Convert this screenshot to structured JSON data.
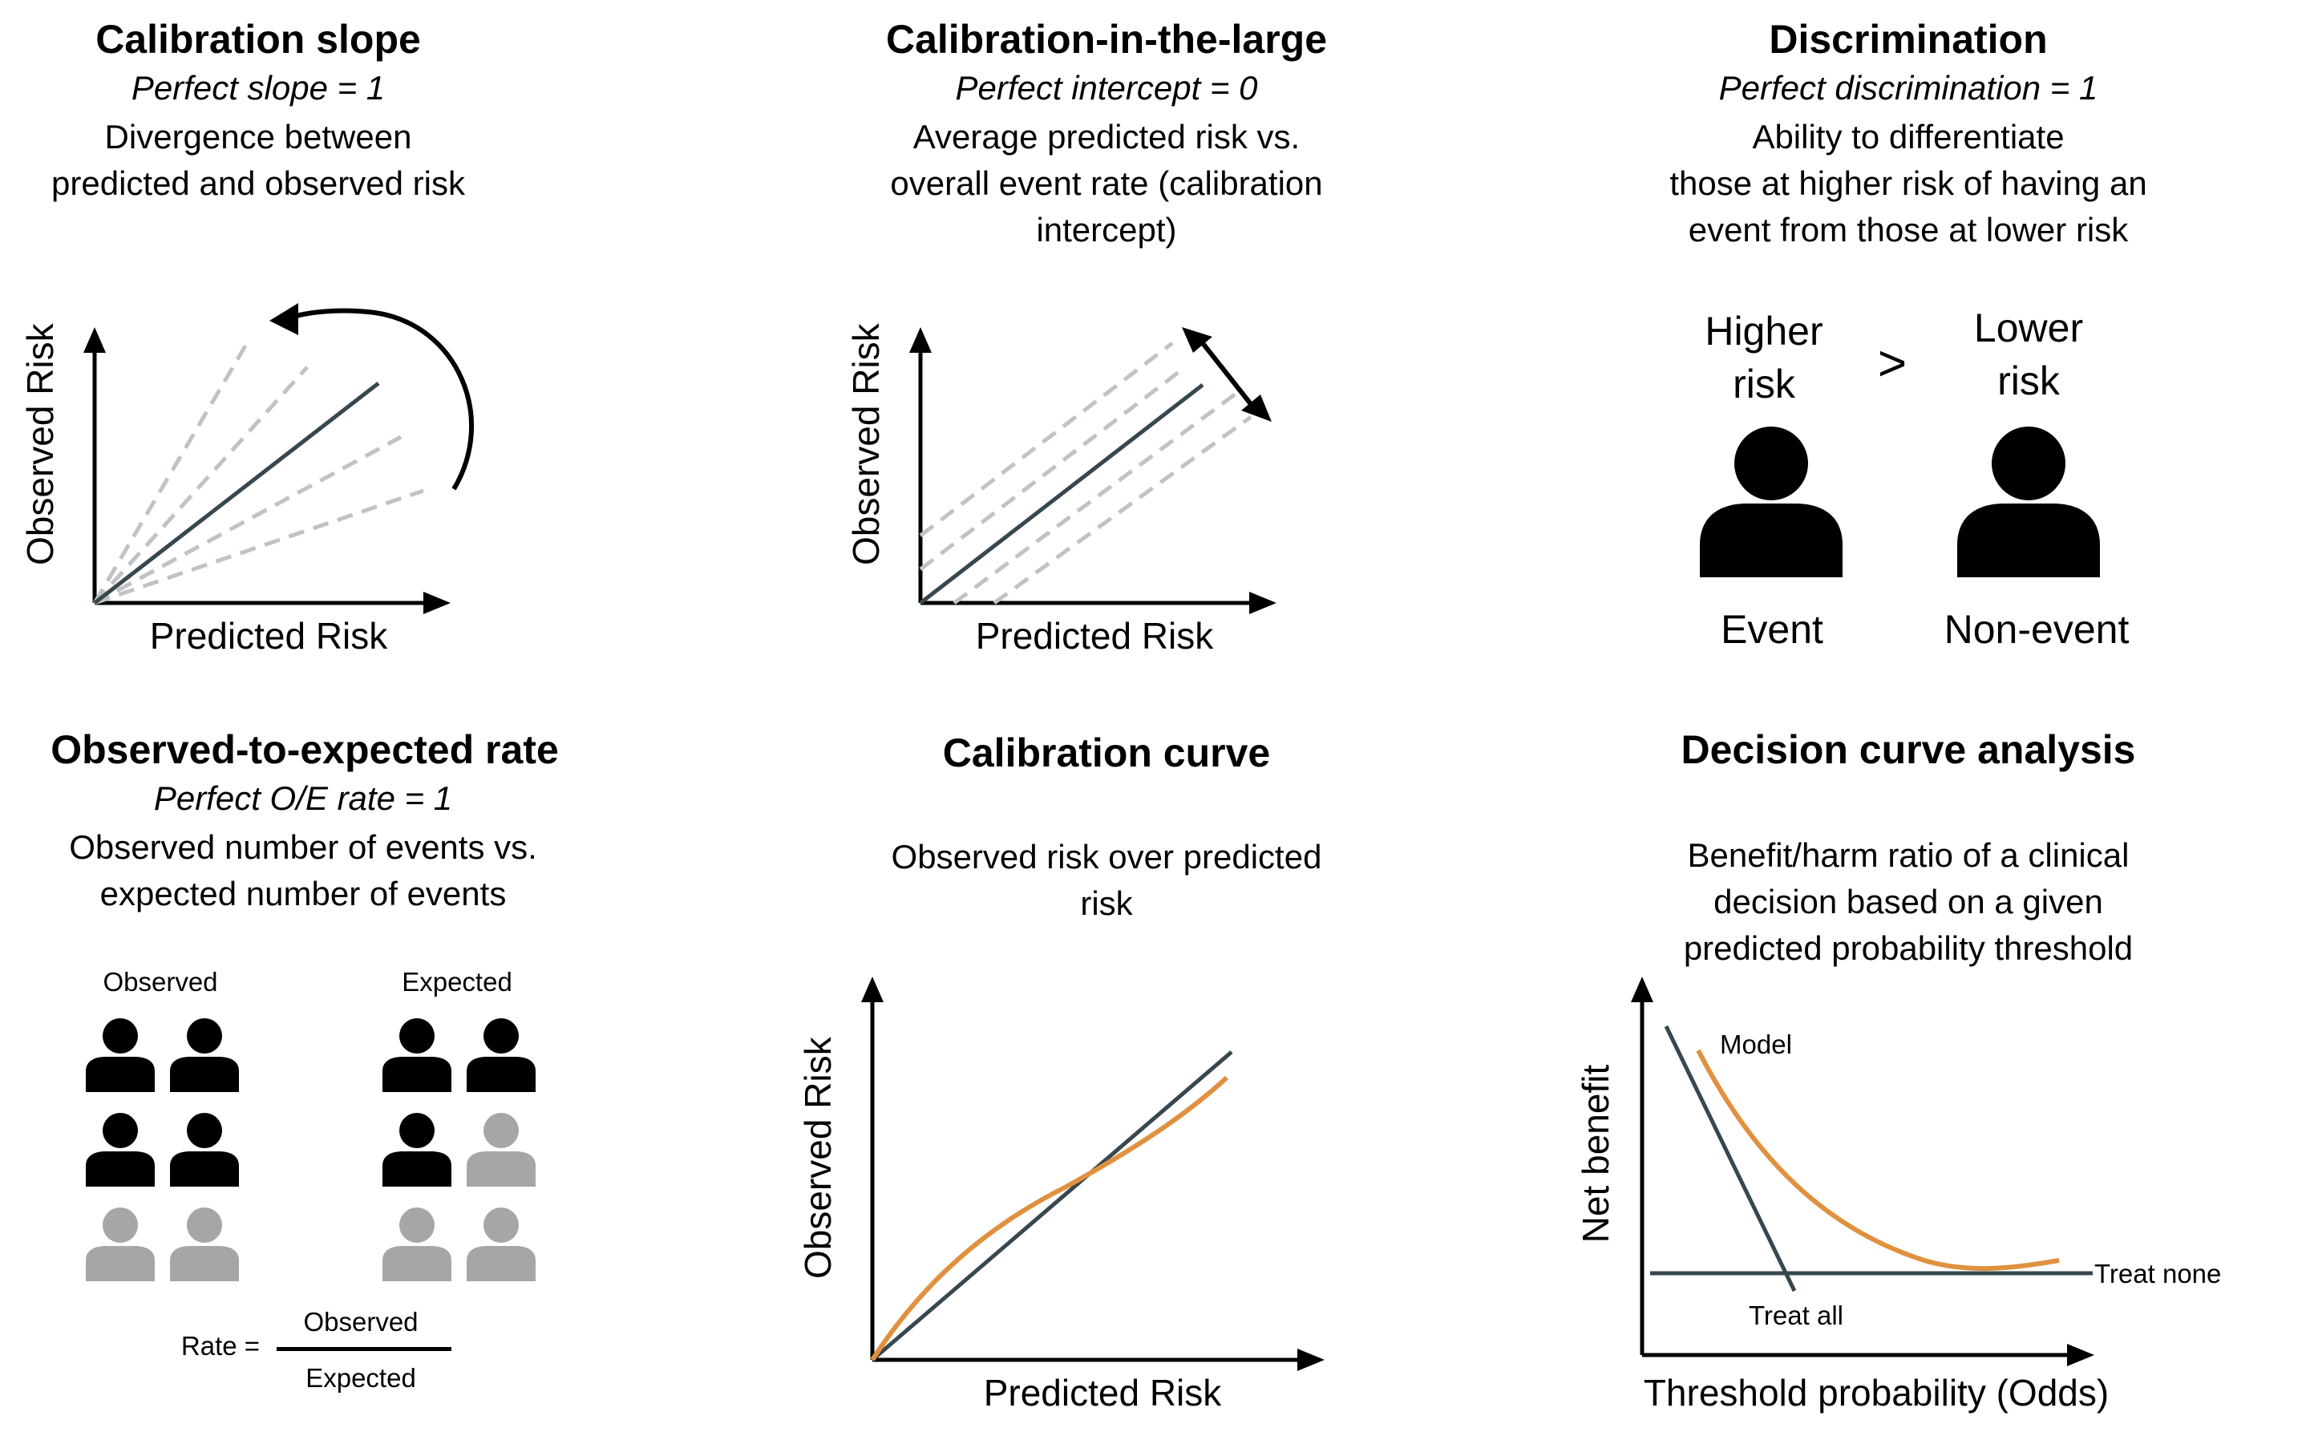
{
  "panels": {
    "slope": {
      "title": "Calibration slope",
      "perfect": "Perfect slope = 1",
      "desc": [
        "Divergence between",
        "predicted and observed risk"
      ],
      "xlabel": "Predicted Risk",
      "ylabel": "Observed Risk"
    },
    "citl": {
      "title": "Calibration-in-the-large",
      "perfect": "Perfect intercept = 0",
      "desc": [
        "Average predicted risk vs.",
        "overall event rate (calibration",
        "intercept)"
      ],
      "xlabel": "Predicted Risk",
      "ylabel": "Observed Risk"
    },
    "discrimination": {
      "title": "Discrimination",
      "perfect": "Perfect discrimination = 1",
      "desc": [
        "Ability to differentiate",
        "those at higher risk of having an",
        "event from those at lower risk"
      ],
      "higher": [
        "Higher",
        "risk"
      ],
      "lower": [
        "Lower",
        "risk"
      ],
      "gt": ">",
      "event": "Event",
      "nonevent": "Non-event"
    },
    "oe": {
      "title": "Observed-to-expected rate",
      "perfect": "Perfect O/E rate = 1",
      "desc": [
        "Observed number of events vs.",
        "expected number of events"
      ],
      "observed_label": "Observed",
      "expected_label": "Expected",
      "rate_label": "Rate =",
      "numerator": "Observed",
      "denominator": "Expected",
      "observed_filled": 4,
      "expected_filled": 3,
      "people_per_group": 6,
      "filled_color": "#000000",
      "empty_color": "#a6a6a6"
    },
    "curve": {
      "title": "Calibration curve",
      "desc": [
        "Observed risk over predicted",
        "risk"
      ],
      "xlabel": "Predicted Risk",
      "ylabel": "Observed Risk"
    },
    "dca": {
      "title": "Decision curve analysis",
      "desc": [
        "Benefit/harm ratio of a clinical",
        "decision based on a given",
        "predicted probability threshold"
      ],
      "xlabel": "Threshold probability (Odds)",
      "ylabel": "Net benefit",
      "model_label": "Model",
      "treat_all_label": "Treat all",
      "treat_none_label": "Treat none"
    }
  },
  "colors": {
    "reference_line": "#37474f",
    "dashed_line": "#bfc3c6",
    "model_curve": "#e0913f",
    "axis": "#000000"
  }
}
